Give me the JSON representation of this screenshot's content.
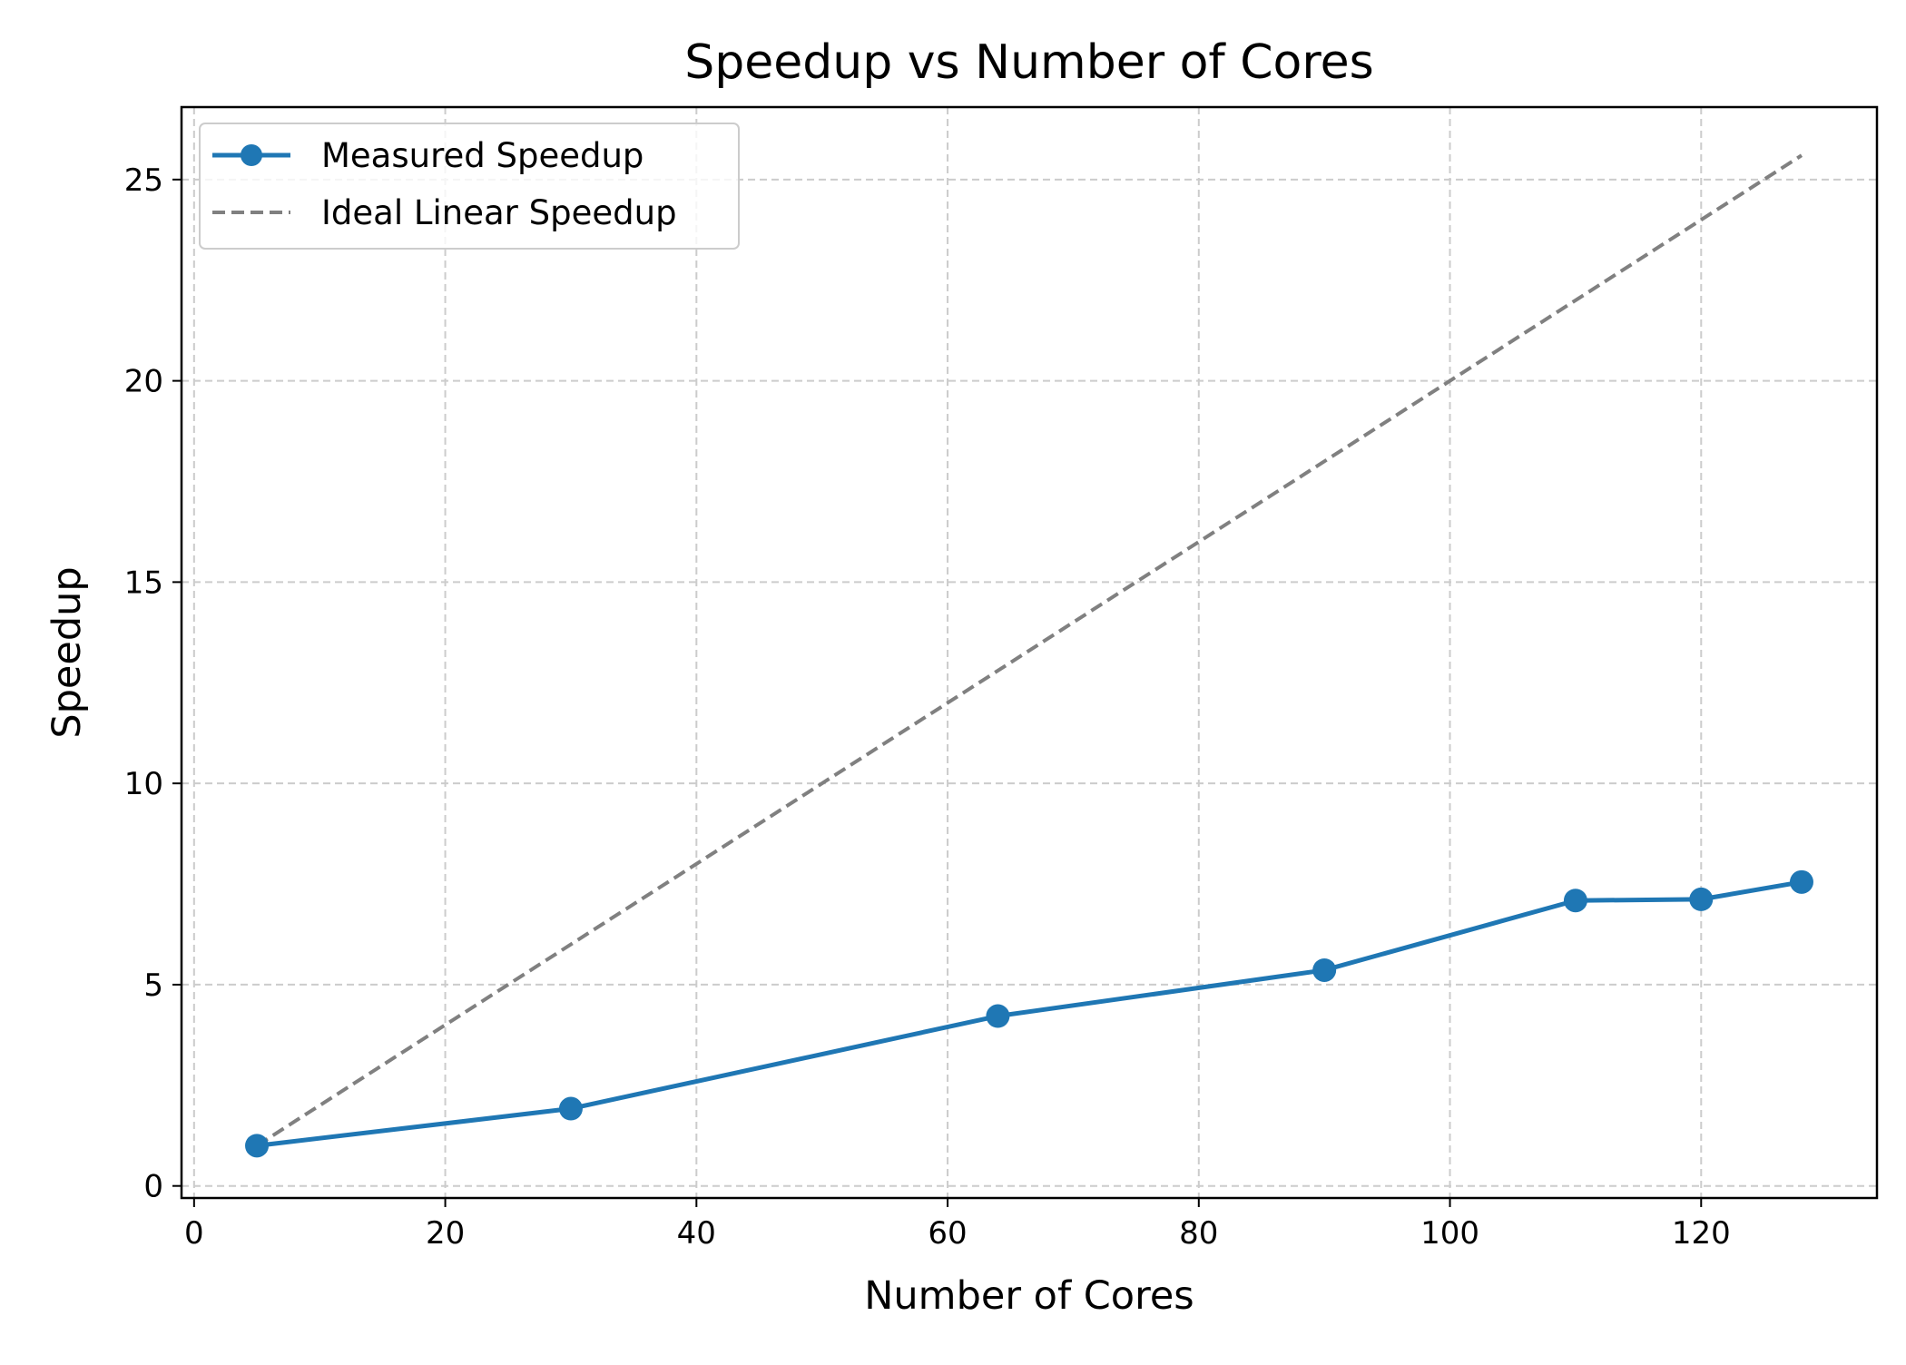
{
  "chart_data": {
    "type": "line",
    "title": "Speedup vs Number of Cores",
    "xlabel": "Number of Cores",
    "ylabel": "Speedup",
    "xlim": [
      -1,
      134
    ],
    "ylim": [
      -0.3,
      26.8
    ],
    "xticks": [
      0,
      20,
      40,
      60,
      80,
      100,
      120
    ],
    "yticks": [
      0,
      5,
      10,
      15,
      20,
      25
    ],
    "grid": true,
    "legend_position": "upper-left",
    "series": [
      {
        "name": "Measured Speedup",
        "style": "solid-with-markers",
        "color": "#1f77b4",
        "x": [
          5,
          30,
          64,
          90,
          110,
          120,
          128
        ],
        "y": [
          1.0,
          1.92,
          4.22,
          5.36,
          7.09,
          7.12,
          7.55
        ]
      },
      {
        "name": "Ideal Linear Speedup",
        "style": "dashed",
        "color": "#808080",
        "x": [
          5,
          128
        ],
        "y": [
          1.0,
          25.6
        ]
      }
    ]
  }
}
